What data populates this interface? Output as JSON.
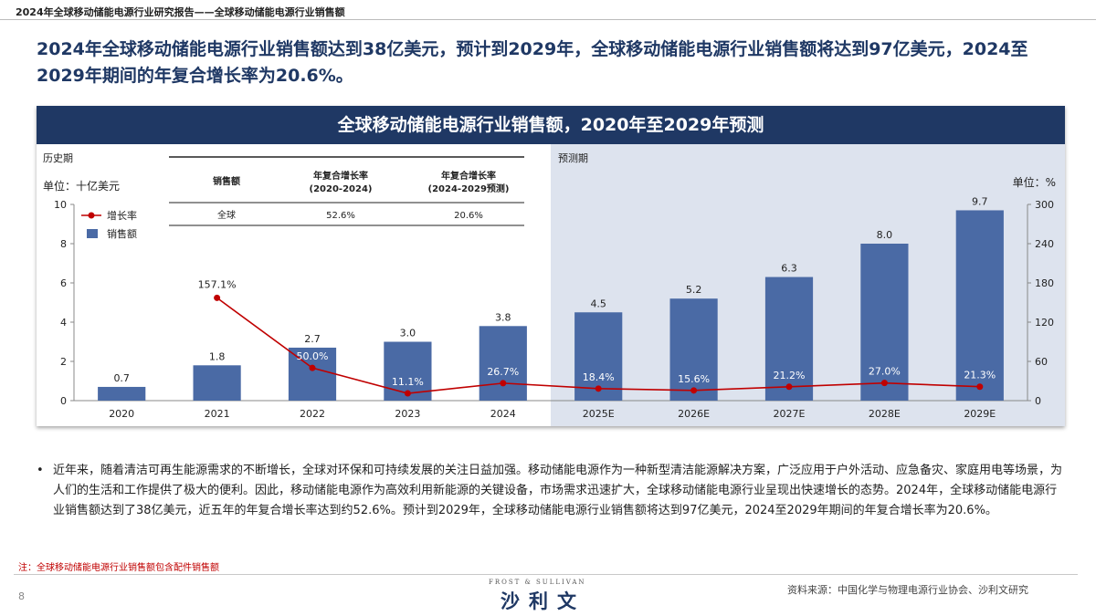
{
  "header": {
    "breadcrumb": "2024年全球移动储能电源行业研究报告——全球移动储能电源行业销售额"
  },
  "headline": "2024年全球移动储能电源行业销售额达到38亿美元，预计到2029年，全球移动储能电源行业销售额将达到97亿美元，2024至2029年期间的年复合增长率为20.6%。",
  "colors": {
    "navy": "#1f3864",
    "bar": "#4a6aa5",
    "line": "#c00000",
    "forecast_bg": "#dde3ee"
  },
  "chart_data": {
    "type": "bar",
    "title": "全球移动储能电源行业销售额，2020年至2029年预测",
    "categories": [
      "2020",
      "2021",
      "2022",
      "2023",
      "2024",
      "2025E",
      "2026E",
      "2027E",
      "2028E",
      "2029E"
    ],
    "series": [
      {
        "name": "销售额",
        "type": "bar",
        "axis": "left",
        "values": [
          0.7,
          1.8,
          2.7,
          3.0,
          3.8,
          4.5,
          5.2,
          6.3,
          8.0,
          9.7
        ],
        "labels": [
          "0.7",
          "1.8",
          "2.7",
          "3.0",
          "3.8",
          "4.5",
          "5.2",
          "6.3",
          "8.0",
          "9.7"
        ]
      },
      {
        "name": "增长率",
        "type": "line",
        "axis": "right",
        "values": [
          null,
          157.1,
          50.0,
          11.1,
          26.7,
          18.4,
          15.6,
          21.2,
          27.0,
          21.3
        ],
        "labels": [
          "",
          "157.1%",
          "50.0%",
          "11.1%",
          "26.7%",
          "18.4%",
          "15.6%",
          "21.2%",
          "27.0%",
          "21.3%"
        ]
      }
    ],
    "ylim_left": [
      0,
      10
    ],
    "yticks_left": [
      "0",
      "2",
      "4",
      "6",
      "8",
      "10"
    ],
    "ylabel_left": "单位：十亿美元",
    "ylim_right": [
      0,
      300
    ],
    "yticks_right": [
      "0",
      "60",
      "120",
      "180",
      "240",
      "300"
    ],
    "ylabel_right": "单位：%",
    "period_labels": {
      "history": "历史期",
      "forecast": "预测期"
    },
    "forecast_start_index": 5,
    "legend": {
      "placement": "top-left",
      "items": [
        "增长率",
        "销售额"
      ]
    },
    "grid": false,
    "cagr_table": {
      "headers": [
        "销售额",
        "年复合增长率\n(2020-2024)",
        "年复合增长率\n(2024-2029预测)"
      ],
      "rows": [
        [
          "全球",
          "52.6%",
          "20.6%"
        ]
      ]
    }
  },
  "bullet": "近年来，随着清洁可再生能源需求的不断增长，全球对环保和可持续发展的关注日益加强。移动储能电源作为一种新型清洁能源解决方案，广泛应用于户外活动、应急备灾、家庭用电等场景，为人们的生活和工作提供了极大的便利。因此，移动储能电源作为高效利用新能源的关键设备，市场需求迅速扩大，全球移动储能电源行业呈现出快速增长的态势。2024年，全球移动储能电源行业销售额达到了38亿美元，近五年的年复合增长率达到约52.6%。预计到2029年，全球移动储能电源行业销售额将达到97亿美元，2024至2029年期间的年复合增长率为20.6%。",
  "note": "注：全球移动储能电源行业销售额包含配件销售额",
  "footer": {
    "page": "8",
    "logo_small": "FROST & SULLIVAN",
    "logo_big": "沙利文",
    "source": "资料来源：中国化学与物理电源行业协会、沙利文研究"
  }
}
